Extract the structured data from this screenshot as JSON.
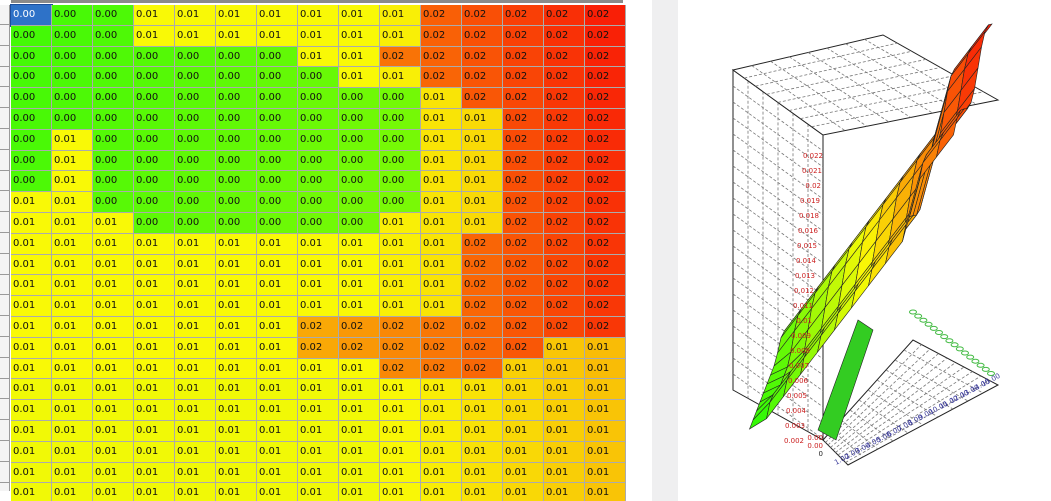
{
  "grid": {
    "selected_cell": [
      0,
      0
    ],
    "rows": [
      [
        "0.00",
        "0.00",
        "0.00",
        "0.01",
        "0.01",
        "0.01",
        "0.01",
        "0.01",
        "0.01",
        "0.01",
        "0.02",
        "0.02",
        "0.02",
        "0.02",
        "0.02"
      ],
      [
        "0.00",
        "0.00",
        "0.00",
        "0.01",
        "0.01",
        "0.01",
        "0.01",
        "0.01",
        "0.01",
        "0.01",
        "0.02",
        "0.02",
        "0.02",
        "0.02",
        "0.02"
      ],
      [
        "0.00",
        "0.00",
        "0.00",
        "0.00",
        "0.00",
        "0.00",
        "0.00",
        "0.01",
        "0.01",
        "0.02",
        "0.02",
        "0.02",
        "0.02",
        "0.02",
        "0.02"
      ],
      [
        "0.00",
        "0.00",
        "0.00",
        "0.00",
        "0.00",
        "0.00",
        "0.00",
        "0.00",
        "0.01",
        "0.01",
        "0.02",
        "0.02",
        "0.02",
        "0.02",
        "0.02"
      ],
      [
        "0.00",
        "0.00",
        "0.00",
        "0.00",
        "0.00",
        "0.00",
        "0.00",
        "0.00",
        "0.00",
        "0.00",
        "0.01",
        "0.02",
        "0.02",
        "0.02",
        "0.02"
      ],
      [
        "0.00",
        "0.00",
        "0.00",
        "0.00",
        "0.00",
        "0.00",
        "0.00",
        "0.00",
        "0.00",
        "0.00",
        "0.01",
        "0.01",
        "0.02",
        "0.02",
        "0.02"
      ],
      [
        "0.00",
        "0.01",
        "0.00",
        "0.00",
        "0.00",
        "0.00",
        "0.00",
        "0.00",
        "0.00",
        "0.00",
        "0.01",
        "0.01",
        "0.02",
        "0.02",
        "0.02"
      ],
      [
        "0.00",
        "0.01",
        "0.00",
        "0.00",
        "0.00",
        "0.00",
        "0.00",
        "0.00",
        "0.00",
        "0.00",
        "0.01",
        "0.01",
        "0.02",
        "0.02",
        "0.02"
      ],
      [
        "0.00",
        "0.01",
        "0.00",
        "0.00",
        "0.00",
        "0.00",
        "0.00",
        "0.00",
        "0.00",
        "0.00",
        "0.01",
        "0.01",
        "0.02",
        "0.02",
        "0.02"
      ],
      [
        "0.01",
        "0.01",
        "0.00",
        "0.00",
        "0.00",
        "0.00",
        "0.00",
        "0.00",
        "0.00",
        "0.00",
        "0.01",
        "0.01",
        "0.02",
        "0.02",
        "0.02"
      ],
      [
        "0.01",
        "0.01",
        "0.01",
        "0.00",
        "0.00",
        "0.00",
        "0.00",
        "0.00",
        "0.00",
        "0.01",
        "0.01",
        "0.01",
        "0.02",
        "0.02",
        "0.02"
      ],
      [
        "0.01",
        "0.01",
        "0.01",
        "0.01",
        "0.01",
        "0.01",
        "0.01",
        "0.01",
        "0.01",
        "0.01",
        "0.01",
        "0.02",
        "0.02",
        "0.02",
        "0.02"
      ],
      [
        "0.01",
        "0.01",
        "0.01",
        "0.01",
        "0.01",
        "0.01",
        "0.01",
        "0.01",
        "0.01",
        "0.01",
        "0.01",
        "0.02",
        "0.02",
        "0.02",
        "0.02"
      ],
      [
        "0.01",
        "0.01",
        "0.01",
        "0.01",
        "0.01",
        "0.01",
        "0.01",
        "0.01",
        "0.01",
        "0.01",
        "0.01",
        "0.02",
        "0.02",
        "0.02",
        "0.02"
      ],
      [
        "0.01",
        "0.01",
        "0.01",
        "0.01",
        "0.01",
        "0.01",
        "0.01",
        "0.01",
        "0.01",
        "0.01",
        "0.01",
        "0.02",
        "0.02",
        "0.02",
        "0.02"
      ],
      [
        "0.01",
        "0.01",
        "0.01",
        "0.01",
        "0.01",
        "0.01",
        "0.01",
        "0.02",
        "0.02",
        "0.02",
        "0.02",
        "0.02",
        "0.02",
        "0.02",
        "0.02"
      ],
      [
        "0.01",
        "0.01",
        "0.01",
        "0.01",
        "0.01",
        "0.01",
        "0.01",
        "0.02",
        "0.02",
        "0.02",
        "0.02",
        "0.02",
        "0.02",
        "0.01",
        "0.01"
      ],
      [
        "0.01",
        "0.01",
        "0.01",
        "0.01",
        "0.01",
        "0.01",
        "0.01",
        "0.01",
        "0.01",
        "0.02",
        "0.02",
        "0.02",
        "0.01",
        "0.01",
        "0.01"
      ],
      [
        "0.01",
        "0.01",
        "0.01",
        "0.01",
        "0.01",
        "0.01",
        "0.01",
        "0.01",
        "0.01",
        "0.01",
        "0.01",
        "0.01",
        "0.01",
        "0.01",
        "0.01"
      ],
      [
        "0.01",
        "0.01",
        "0.01",
        "0.01",
        "0.01",
        "0.01",
        "0.01",
        "0.01",
        "0.01",
        "0.01",
        "0.01",
        "0.01",
        "0.01",
        "0.01",
        "0.01"
      ],
      [
        "0.01",
        "0.01",
        "0.01",
        "0.01",
        "0.01",
        "0.01",
        "0.01",
        "0.01",
        "0.01",
        "0.01",
        "0.01",
        "0.01",
        "0.01",
        "0.01",
        "0.01"
      ],
      [
        "0.01",
        "0.01",
        "0.01",
        "0.01",
        "0.01",
        "0.01",
        "0.01",
        "0.01",
        "0.01",
        "0.01",
        "0.01",
        "0.01",
        "0.01",
        "0.01",
        "0.01"
      ],
      [
        "0.01",
        "0.01",
        "0.01",
        "0.01",
        "0.01",
        "0.01",
        "0.01",
        "0.01",
        "0.01",
        "0.01",
        "0.01",
        "0.01",
        "0.01",
        "0.01",
        "0.01"
      ],
      [
        "0.01",
        "0.01",
        "0.01",
        "0.01",
        "0.01",
        "0.01",
        "0.01",
        "0.01",
        "0.01",
        "0.01",
        "0.01",
        "0.01",
        "0.01",
        "0.01",
        "0.01"
      ]
    ]
  },
  "chart": {
    "z_ticks": [
      "0.022",
      "0.021",
      "0.02",
      "0.019",
      "0.018",
      "0.016",
      "0.015",
      "0.014",
      "0.013",
      "0.012",
      "0.011",
      "0.01",
      "0.009",
      "0.008",
      "0.007",
      "0.006",
      "0.005",
      "0.004",
      "0.003",
      "0.002"
    ],
    "base_labels": [
      "0.00",
      "0.00",
      "0"
    ],
    "x_ticks": [
      "1.00",
      "2.00",
      "3.00",
      "4.00",
      "5.00",
      "6.00",
      "7.00",
      "8.00",
      "9.00",
      "10.00",
      "11.00",
      "12.00",
      "13.00",
      "14.00",
      "15.00"
    ],
    "colors": {
      "tick_text": "#cc2222",
      "axis_text": "#3a3a9a",
      "side_ticks": "#44bb44"
    }
  }
}
